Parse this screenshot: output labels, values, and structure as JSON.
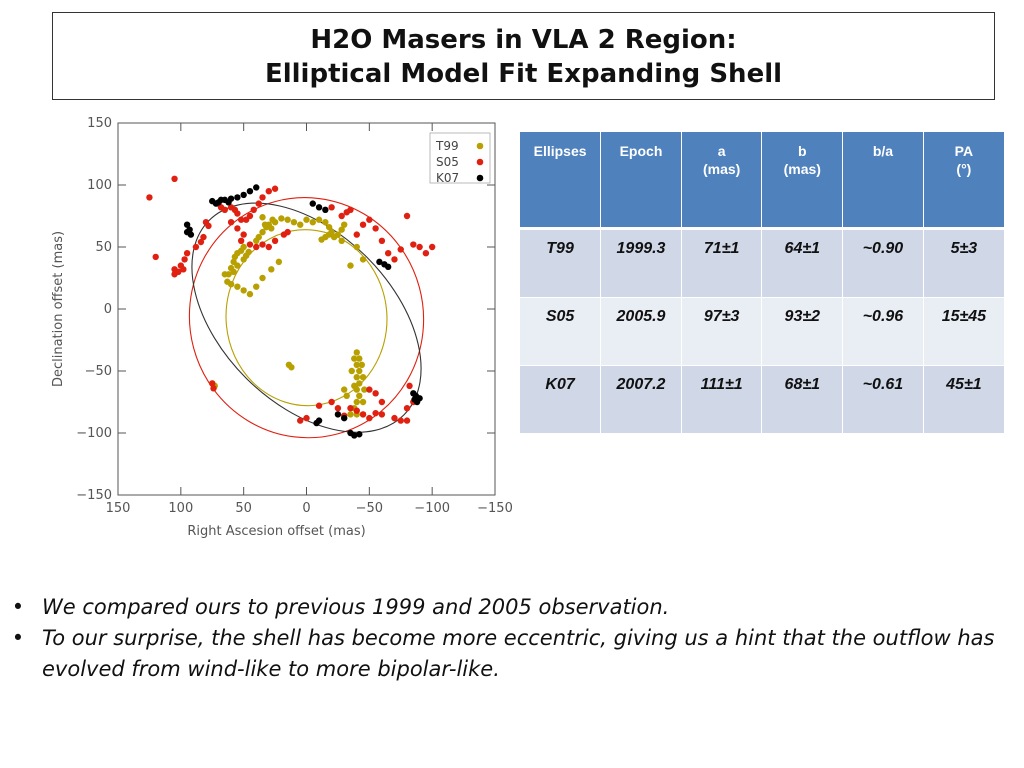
{
  "title": {
    "line1": "H2O Masers in VLA 2 Region:",
    "line2": "Elliptical Model Fit Expanding Shell"
  },
  "chart_data": {
    "type": "scatter",
    "xlabel": "Right Ascesion offset (mas)",
    "ylabel": "Declination offset (mas)",
    "xlim": [
      150,
      -150
    ],
    "ylim": [
      -150,
      150
    ],
    "x_ticks": [
      150,
      100,
      50,
      0,
      -50,
      -100,
      -150
    ],
    "y_ticks": [
      150,
      100,
      50,
      0,
      -50,
      -100,
      -150
    ],
    "x_tick_labels": [
      "150",
      "100",
      "50",
      "0",
      "−50",
      "−100",
      "−150"
    ],
    "y_tick_labels": [
      "150",
      "100",
      "50",
      "0",
      "−50",
      "−100",
      "−150"
    ],
    "legend_position": "top-right",
    "series": [
      {
        "name": "T99",
        "color": "#b8a000",
        "points": [
          [
            27,
            72
          ],
          [
            30,
            68
          ],
          [
            35,
            74
          ],
          [
            33,
            68
          ],
          [
            28,
            65
          ],
          [
            25,
            70
          ],
          [
            20,
            73
          ],
          [
            15,
            72
          ],
          [
            10,
            70
          ],
          [
            5,
            68
          ],
          [
            0,
            72
          ],
          [
            -5,
            70
          ],
          [
            -10,
            72
          ],
          [
            -15,
            70
          ],
          [
            -18,
            66
          ],
          [
            -20,
            62
          ],
          [
            -25,
            60
          ],
          [
            -15,
            58
          ],
          [
            -12,
            56
          ],
          [
            -18,
            60
          ],
          [
            -22,
            58
          ],
          [
            -28,
            55
          ],
          [
            -28,
            64
          ],
          [
            -30,
            68
          ],
          [
            -40,
            50
          ],
          [
            -45,
            40
          ],
          [
            -35,
            35
          ],
          [
            50,
            50
          ],
          [
            52,
            47
          ],
          [
            55,
            45
          ],
          [
            57,
            42
          ],
          [
            58,
            38
          ],
          [
            60,
            33
          ],
          [
            62,
            28
          ],
          [
            58,
            30
          ],
          [
            55,
            35
          ],
          [
            50,
            40
          ],
          [
            48,
            43
          ],
          [
            46,
            46
          ],
          [
            40,
            55
          ],
          [
            38,
            58
          ],
          [
            35,
            62
          ],
          [
            32,
            66
          ],
          [
            65,
            28
          ],
          [
            63,
            22
          ],
          [
            60,
            20
          ],
          [
            55,
            18
          ],
          [
            50,
            15
          ],
          [
            45,
            12
          ],
          [
            40,
            18
          ],
          [
            35,
            25
          ],
          [
            28,
            32
          ],
          [
            22,
            38
          ],
          [
            14,
            -45
          ],
          [
            12,
            -47
          ],
          [
            -40,
            -35
          ],
          [
            -42,
            -40
          ],
          [
            -40,
            -45
          ],
          [
            -42,
            -50
          ],
          [
            -40,
            -55
          ],
          [
            -42,
            -60
          ],
          [
            -40,
            -65
          ],
          [
            -42,
            -70
          ],
          [
            -40,
            -75
          ],
          [
            -38,
            -40
          ],
          [
            -44,
            -45
          ],
          [
            -45,
            -55
          ],
          [
            -46,
            -65
          ],
          [
            -45,
            -75
          ],
          [
            -38,
            -80
          ],
          [
            -35,
            -85
          ],
          [
            -40,
            -85
          ],
          [
            -45,
            -85
          ],
          [
            -38,
            -62
          ],
          [
            -36,
            -50
          ],
          [
            75,
            -60
          ],
          [
            73,
            -62
          ],
          [
            -30,
            -65
          ],
          [
            -32,
            -70
          ]
        ]
      },
      {
        "name": "S05",
        "color": "#e02010",
        "points": [
          [
            125,
            90
          ],
          [
            105,
            105
          ],
          [
            120,
            42
          ],
          [
            80,
            70
          ],
          [
            78,
            67
          ],
          [
            82,
            58
          ],
          [
            84,
            54
          ],
          [
            88,
            50
          ],
          [
            95,
            45
          ],
          [
            97,
            40
          ],
          [
            102,
            30
          ],
          [
            105,
            28
          ],
          [
            105,
            32
          ],
          [
            98,
            32
          ],
          [
            100,
            35
          ],
          [
            70,
            85
          ],
          [
            68,
            82
          ],
          [
            65,
            80
          ],
          [
            60,
            82
          ],
          [
            57,
            80
          ],
          [
            55,
            77
          ],
          [
            52,
            72
          ],
          [
            48,
            72
          ],
          [
            45,
            75
          ],
          [
            42,
            80
          ],
          [
            38,
            85
          ],
          [
            35,
            90
          ],
          [
            30,
            95
          ],
          [
            25,
            97
          ],
          [
            60,
            70
          ],
          [
            55,
            65
          ],
          [
            50,
            60
          ],
          [
            52,
            55
          ],
          [
            45,
            52
          ],
          [
            40,
            50
          ],
          [
            35,
            52
          ],
          [
            30,
            50
          ],
          [
            25,
            55
          ],
          [
            18,
            60
          ],
          [
            15,
            62
          ],
          [
            -20,
            82
          ],
          [
            -28,
            75
          ],
          [
            -32,
            78
          ],
          [
            -35,
            80
          ],
          [
            -40,
            60
          ],
          [
            -45,
            68
          ],
          [
            -50,
            72
          ],
          [
            -55,
            65
          ],
          [
            -60,
            55
          ],
          [
            -65,
            45
          ],
          [
            -70,
            40
          ],
          [
            -75,
            48
          ],
          [
            -80,
            75
          ],
          [
            -85,
            52
          ],
          [
            -90,
            50
          ],
          [
            -95,
            45
          ],
          [
            -100,
            50
          ],
          [
            75,
            -60
          ],
          [
            74,
            -64
          ],
          [
            -35,
            -80
          ],
          [
            -40,
            -82
          ],
          [
            -45,
            -85
          ],
          [
            -50,
            -88
          ],
          [
            -55,
            -84
          ],
          [
            -60,
            -85
          ],
          [
            -70,
            -88
          ],
          [
            -75,
            -90
          ],
          [
            -80,
            -90
          ],
          [
            -85,
            -75
          ],
          [
            -80,
            -80
          ],
          [
            -30,
            -86
          ],
          [
            -25,
            -80
          ],
          [
            -20,
            -75
          ],
          [
            -10,
            -78
          ],
          [
            0,
            -88
          ],
          [
            5,
            -90
          ],
          [
            -50,
            -65
          ],
          [
            -55,
            -68
          ],
          [
            -60,
            -75
          ],
          [
            -82,
            -62
          ]
        ]
      },
      {
        "name": "K07",
        "color": "#000000",
        "points": [
          [
            95,
            68
          ],
          [
            93,
            64
          ],
          [
            95,
            62
          ],
          [
            92,
            60
          ],
          [
            75,
            87
          ],
          [
            72,
            85
          ],
          [
            70,
            86
          ],
          [
            68,
            88
          ],
          [
            65,
            88
          ],
          [
            62,
            86
          ],
          [
            60,
            89
          ],
          [
            55,
            90
          ],
          [
            50,
            92
          ],
          [
            45,
            95
          ],
          [
            40,
            98
          ],
          [
            -5,
            85
          ],
          [
            -10,
            82
          ],
          [
            -15,
            80
          ],
          [
            -58,
            38
          ],
          [
            -62,
            36
          ],
          [
            -65,
            34
          ],
          [
            -85,
            -68
          ],
          [
            -87,
            -70
          ],
          [
            -90,
            -72
          ],
          [
            -88,
            -75
          ],
          [
            -86,
            -73
          ],
          [
            -25,
            -85
          ],
          [
            -38,
            -102
          ],
          [
            -42,
            -101
          ],
          [
            -35,
            -100
          ],
          [
            -10,
            -90
          ],
          [
            -8,
            -92
          ],
          [
            -30,
            -88
          ]
        ]
      }
    ],
    "ellipse_colors": {
      "T99": "#b8a000",
      "S05": "#e02010",
      "K07": "#333333"
    }
  },
  "table": {
    "headers": [
      "Ellipses",
      "Epoch",
      "a\n(mas)",
      "b\n(mas)",
      "b/a",
      "PA\n(°)"
    ],
    "rows": [
      [
        "T99",
        "1999.3",
        "71±1",
        "64±1",
        "~0.90",
        "5±3"
      ],
      [
        "S05",
        "2005.9",
        "97±3",
        "93±2",
        "~0.96",
        "15±45"
      ],
      [
        "K07",
        "2007.2",
        "111±1",
        "68±1",
        "~0.61",
        "45±1"
      ]
    ]
  },
  "bullets": [
    "We compared ours to previous 1999 and 2005 observation.",
    "To our surprise, the shell has become more eccentric, giving us a hint that the outflow has evolved from wind-like to more bipolar-like."
  ],
  "bullet_symbol": "•"
}
